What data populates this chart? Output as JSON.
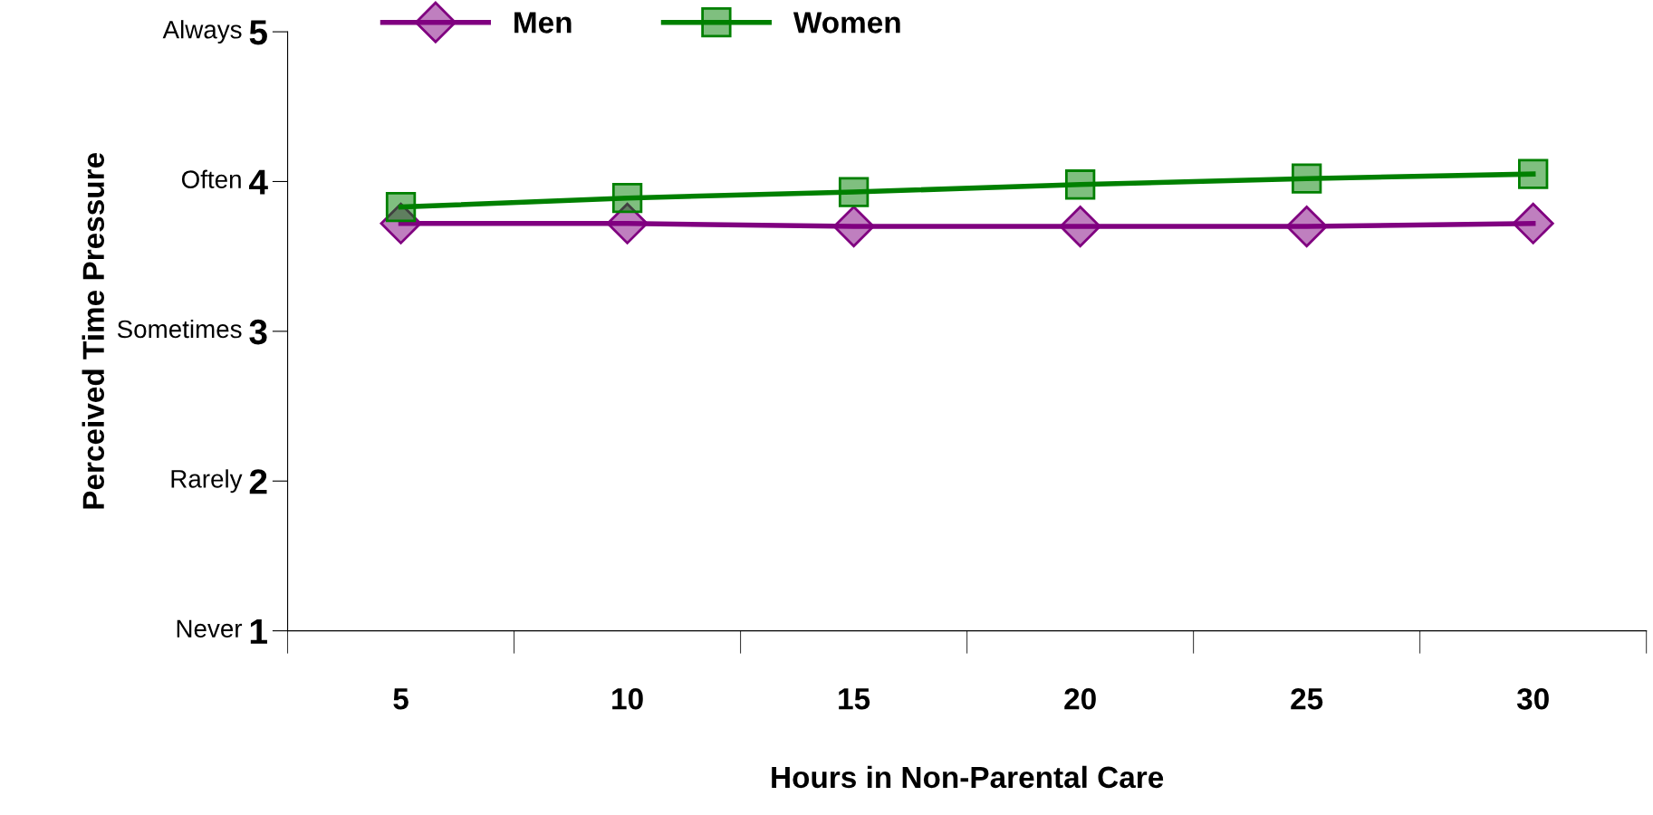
{
  "chart_data": {
    "type": "line",
    "xlabel": "Hours in Non-Parental Care",
    "ylabel": "Perceived Time Pressure",
    "categories": [
      "5",
      "10",
      "15",
      "20",
      "25",
      "30"
    ],
    "series": [
      {
        "name": "Men",
        "color": "#800080",
        "marker": "diamond",
        "values": [
          3.72,
          3.72,
          3.7,
          3.7,
          3.7,
          3.72
        ]
      },
      {
        "name": "Women",
        "color": "#008000",
        "marker": "square",
        "values": [
          3.83,
          3.89,
          3.93,
          3.98,
          4.02,
          4.05
        ]
      }
    ],
    "ylim": [
      1,
      5
    ],
    "yticks": [
      1,
      2,
      3,
      4,
      5
    ],
    "annotations": [
      "Never",
      "Rarely",
      "Sometimes",
      "Often",
      "Always"
    ],
    "grid": false,
    "legend": "top left",
    "line_style": "solid"
  }
}
